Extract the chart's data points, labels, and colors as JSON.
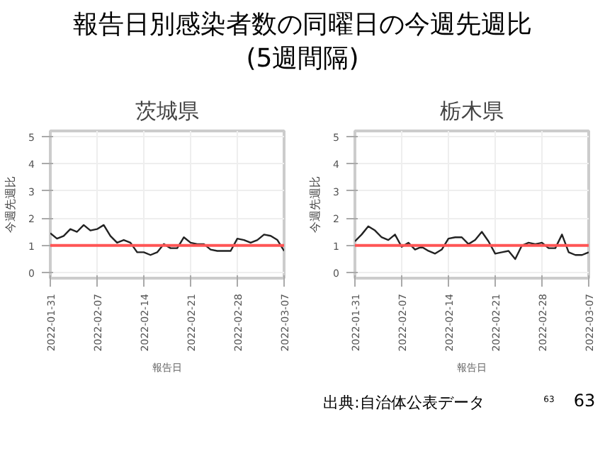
{
  "chart_data": [
    {
      "type": "line",
      "title": "茨城県",
      "annotations": [
        "報告日別感染者数の同曜日の今週先週比",
        "(5週間隔)"
      ],
      "xlabel": "報告日",
      "ylabel": "今週先週比",
      "grid": true,
      "ylim": [
        -0.2,
        5.2
      ],
      "yticks": [
        0,
        1,
        2,
        3,
        4,
        5
      ],
      "xlim": [
        "2022-01-31",
        "2022-03-07"
      ],
      "xticks": [
        "2022-01-31",
        "2022-02-07",
        "2022-02-14",
        "2022-02-21",
        "2022-02-28",
        "2022-03-07"
      ],
      "x": [
        "2022-01-31",
        "2022-02-01",
        "2022-02-02",
        "2022-02-03",
        "2022-02-04",
        "2022-02-05",
        "2022-02-06",
        "2022-02-07",
        "2022-02-08",
        "2022-02-09",
        "2022-02-10",
        "2022-02-11",
        "2022-02-12",
        "2022-02-13",
        "2022-02-14",
        "2022-02-15",
        "2022-02-16",
        "2022-02-17",
        "2022-02-18",
        "2022-02-19",
        "2022-02-20",
        "2022-02-21",
        "2022-02-22",
        "2022-02-23",
        "2022-02-24",
        "2022-02-25",
        "2022-02-26",
        "2022-02-27",
        "2022-02-28",
        "2022-03-01",
        "2022-03-02",
        "2022-03-03",
        "2022-03-04",
        "2022-03-05",
        "2022-03-06",
        "2022-03-07"
      ],
      "series": [
        {
          "color": "#222222",
          "values": [
            1.45,
            1.25,
            1.35,
            1.6,
            1.5,
            1.75,
            1.55,
            1.6,
            1.75,
            1.35,
            1.1,
            1.2,
            1.1,
            0.75,
            0.75,
            0.65,
            0.75,
            1.05,
            0.9,
            0.9,
            1.3,
            1.1,
            1.05,
            1.05,
            0.85,
            0.8,
            0.8,
            0.8,
            1.25,
            1.2,
            1.1,
            1.2,
            1.4,
            1.35,
            1.2,
            0.8
          ]
        }
      ],
      "ref_lines": [
        {
          "axis": "y",
          "value": 1,
          "color": "#ff5555"
        }
      ]
    },
    {
      "type": "line",
      "title": "栃木県",
      "annotations": [
        "出典:自治体公表データ",
        "63",
        "63"
      ],
      "xlabel": "報告日",
      "ylabel": "今週先週比",
      "grid": true,
      "ylim": [
        -0.2,
        5.2
      ],
      "yticks": [
        0,
        1,
        2,
        3,
        4,
        5
      ],
      "xlim": [
        "2022-01-31",
        "2022-03-07"
      ],
      "xticks": [
        "2022-01-31",
        "2022-02-07",
        "2022-02-14",
        "2022-02-21",
        "2022-02-28",
        "2022-03-07"
      ],
      "x": [
        "2022-01-31",
        "2022-02-01",
        "2022-02-02",
        "2022-02-03",
        "2022-02-04",
        "2022-02-05",
        "2022-02-06",
        "2022-02-07",
        "2022-02-08",
        "2022-02-09",
        "2022-02-10",
        "2022-02-11",
        "2022-02-12",
        "2022-02-13",
        "2022-02-14",
        "2022-02-15",
        "2022-02-16",
        "2022-02-17",
        "2022-02-18",
        "2022-02-19",
        "2022-02-20",
        "2022-02-21",
        "2022-02-22",
        "2022-02-23",
        "2022-02-24",
        "2022-02-25",
        "2022-02-26",
        "2022-02-27",
        "2022-02-28",
        "2022-03-01",
        "2022-03-02",
        "2022-03-03",
        "2022-03-04",
        "2022-03-05",
        "2022-03-06",
        "2022-03-07"
      ],
      "series": [
        {
          "color": "#222222",
          "values": [
            1.15,
            1.4,
            1.7,
            1.55,
            1.3,
            1.2,
            1.4,
            0.95,
            1.1,
            0.85,
            0.95,
            0.8,
            0.7,
            0.85,
            1.25,
            1.3,
            1.3,
            1.05,
            1.2,
            1.5,
            1.15,
            0.7,
            0.75,
            0.8,
            0.5,
            1.0,
            1.1,
            1.05,
            1.1,
            0.9,
            0.9,
            1.4,
            0.75,
            0.65,
            0.65,
            0.75
          ]
        }
      ],
      "ref_lines": [
        {
          "axis": "y",
          "value": 1,
          "color": "#ff5555"
        }
      ]
    }
  ]
}
